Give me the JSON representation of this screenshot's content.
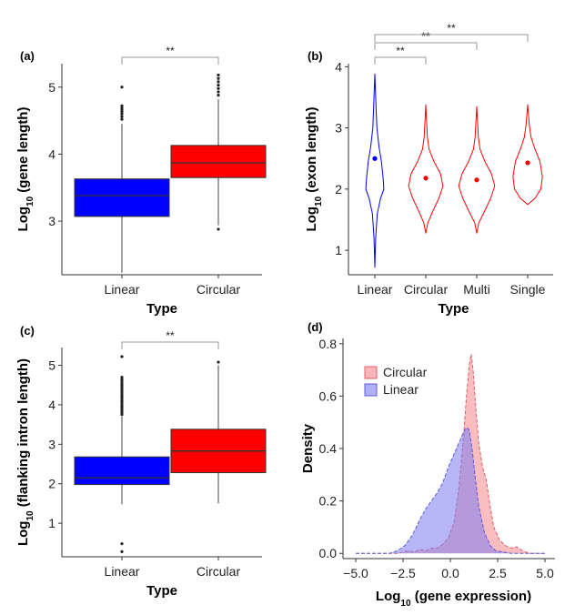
{
  "chart_data": [
    {
      "panel": "(a)",
      "type": "box",
      "categories": [
        "Linear",
        "Circular"
      ],
      "colors": [
        "#0000ff",
        "#ff0000"
      ],
      "xlabel": "Type",
      "ylabel_main": "Log",
      "ylabel_sub": "10",
      "ylabel_rest": " (gene length)",
      "ylim": [
        2.2,
        5.35
      ],
      "yticks": [
        3,
        4,
        5
      ],
      "yticklabels": [
        "3",
        "4",
        "5"
      ],
      "boxes": [
        {
          "q1": 3.07,
          "median": 3.38,
          "q3": 3.63,
          "whisker_low": 2.23,
          "whisker_high": 4.45,
          "outliers": [
            4.52,
            4.56,
            4.6,
            4.63,
            4.66,
            4.69,
            4.72,
            5.0
          ]
        },
        {
          "q1": 3.65,
          "median": 3.87,
          "q3": 4.13,
          "whisker_low": 2.94,
          "whisker_high": 4.82,
          "outliers": [
            2.88,
            4.88,
            4.93,
            4.98,
            5.03,
            5.08,
            5.13,
            5.18
          ]
        }
      ],
      "significance": [
        {
          "from": 0,
          "to": 1,
          "label": "**"
        }
      ]
    },
    {
      "panel": "(b)",
      "type": "violin",
      "categories": [
        "Linear",
        "Circular",
        "Multi",
        "Single"
      ],
      "colors": [
        "#0000ff",
        "#ff0000",
        "#ff0000",
        "#ff0000"
      ],
      "xlabel": "Type",
      "ylabel_main": "Log",
      "ylabel_sub": "10",
      "ylabel_rest": " (exon length)",
      "ylim": [
        0.6,
        4.05
      ],
      "yticks": [
        1,
        2,
        3,
        4
      ],
      "yticklabels": [
        "1",
        "2",
        "3",
        "4"
      ],
      "means": [
        2.5,
        2.18,
        2.15,
        2.43
      ],
      "violins": [
        {
          "y": [
            0.72,
            1.2,
            1.6,
            1.85,
            2.0,
            2.2,
            2.45,
            2.7,
            3.0,
            3.3,
            3.6,
            3.88
          ],
          "w": [
            0.0,
            0.02,
            0.06,
            0.14,
            0.22,
            0.2,
            0.16,
            0.1,
            0.05,
            0.03,
            0.015,
            0.0
          ]
        },
        {
          "y": [
            1.28,
            1.45,
            1.65,
            1.85,
            2.05,
            2.25,
            2.45,
            2.65,
            2.85,
            3.1,
            3.38
          ],
          "w": [
            0.0,
            0.05,
            0.18,
            0.32,
            0.42,
            0.36,
            0.2,
            0.08,
            0.04,
            0.02,
            0.0
          ]
        },
        {
          "y": [
            1.28,
            1.45,
            1.65,
            1.85,
            2.05,
            2.25,
            2.45,
            2.65,
            2.85,
            3.1,
            3.35
          ],
          "w": [
            0.0,
            0.05,
            0.2,
            0.34,
            0.44,
            0.36,
            0.2,
            0.08,
            0.04,
            0.02,
            0.0
          ]
        },
        {
          "y": [
            1.75,
            1.85,
            2.0,
            2.2,
            2.45,
            2.65,
            2.85,
            3.05,
            3.25,
            3.38
          ],
          "w": [
            0.0,
            0.18,
            0.32,
            0.36,
            0.3,
            0.18,
            0.08,
            0.04,
            0.015,
            0.0
          ]
        }
      ],
      "significance": [
        {
          "from": 0,
          "to": 1,
          "label": "**"
        },
        {
          "from": 0,
          "to": 2,
          "label": "**"
        },
        {
          "from": 0,
          "to": 3,
          "label": "**"
        }
      ]
    },
    {
      "panel": "(c)",
      "type": "box",
      "categories": [
        "Linear",
        "Circular"
      ],
      "colors": [
        "#0000ff",
        "#ff0000"
      ],
      "xlabel": "Type",
      "ylabel_main": "Log",
      "ylabel_sub": "10",
      "ylabel_rest": " (flanking intron length)",
      "ylim": [
        0.15,
        5.45
      ],
      "yticks": [
        1,
        2,
        3,
        4,
        5
      ],
      "yticklabels": [
        "1",
        "2",
        "3",
        "4",
        "5"
      ],
      "boxes": [
        {
          "q1": 1.98,
          "median": 2.15,
          "q3": 2.68,
          "whisker_low": 1.48,
          "whisker_high": 3.7,
          "outliers": [
            0.28,
            0.48,
            3.75,
            3.8,
            3.85,
            3.9,
            3.95,
            4.0,
            4.05,
            4.1,
            4.15,
            4.2,
            4.25,
            4.3,
            4.35,
            4.4,
            4.45,
            4.5,
            4.55,
            4.6,
            4.65,
            4.7,
            5.22
          ]
        },
        {
          "q1": 2.28,
          "median": 2.83,
          "q3": 3.38,
          "whisker_low": 1.5,
          "whisker_high": 5.0,
          "outliers": [
            5.08
          ]
        }
      ],
      "significance": [
        {
          "from": 0,
          "to": 1,
          "label": "**"
        }
      ]
    },
    {
      "panel": "(d)",
      "type": "area",
      "xlabel_main": "Log",
      "xlabel_sub": "10",
      "xlabel_rest": " (gene expression)",
      "ylabel": "Density",
      "xlim": [
        -5.0,
        5.0
      ],
      "ylim": [
        -0.02,
        0.82
      ],
      "xticks": [
        -5.0,
        -2.5,
        0.0,
        2.5,
        5.0
      ],
      "xticklabels": [
        "−5.0",
        "−2.5",
        "0.0",
        "2.5",
        "5.0"
      ],
      "yticks": [
        0.0,
        0.2,
        0.4,
        0.6,
        0.8
      ],
      "yticklabels": [
        "0.0",
        "0.2",
        "0.4",
        "0.6",
        "0.8"
      ],
      "legend_position": "top-left",
      "series": [
        {
          "name": "Circular",
          "stroke": "#e0606a",
          "fill": "#f4868c",
          "x": [
            -5.0,
            -2.8,
            -2.5,
            -2.2,
            -1.9,
            -1.6,
            -1.3,
            -1.0,
            -0.7,
            -0.4,
            -0.1,
            0.2,
            0.45,
            0.7,
            0.85,
            1.0,
            1.1,
            1.2,
            1.35,
            1.5,
            1.7,
            1.9,
            2.1,
            2.3,
            2.6,
            2.9,
            3.2,
            3.5,
            3.8,
            4.2,
            5.0
          ],
          "y": [
            0.0,
            0.0,
            0.005,
            0.01,
            0.005,
            0.015,
            0.01,
            0.02,
            0.02,
            0.035,
            0.06,
            0.12,
            0.25,
            0.45,
            0.6,
            0.72,
            0.76,
            0.7,
            0.55,
            0.42,
            0.33,
            0.28,
            0.18,
            0.1,
            0.05,
            0.03,
            0.02,
            0.025,
            0.01,
            0.0,
            0.0
          ]
        },
        {
          "name": "Linear",
          "stroke": "#5b5bdc",
          "fill": "#7b7bf0",
          "x": [
            -5.0,
            -3.2,
            -2.8,
            -2.4,
            -2.0,
            -1.6,
            -1.3,
            -1.0,
            -0.7,
            -0.4,
            -0.1,
            0.2,
            0.5,
            0.75,
            0.9,
            1.0,
            1.15,
            1.3,
            1.5,
            1.8,
            2.1,
            2.4,
            2.8,
            3.2,
            5.0
          ],
          "y": [
            0.0,
            0.0,
            0.01,
            0.03,
            0.07,
            0.13,
            0.17,
            0.2,
            0.23,
            0.27,
            0.33,
            0.38,
            0.43,
            0.47,
            0.48,
            0.47,
            0.4,
            0.3,
            0.18,
            0.08,
            0.03,
            0.01,
            0.005,
            0.0,
            0.0
          ]
        }
      ]
    }
  ]
}
